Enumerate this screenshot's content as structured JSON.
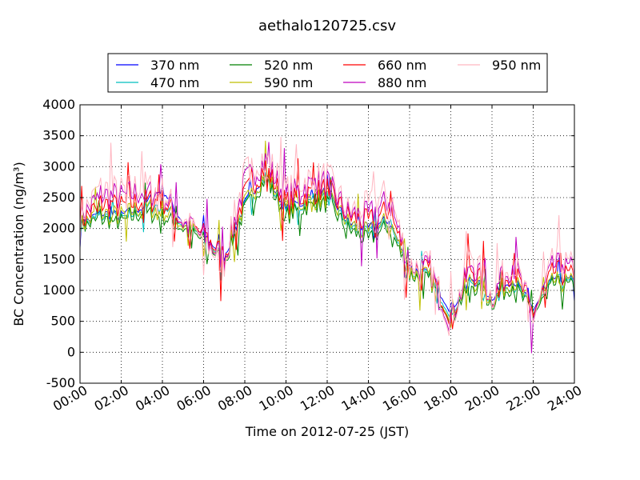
{
  "chart_data": {
    "type": "line",
    "title": "aethalo120725.csv",
    "xlabel": "Time on 2012-07-25 (JST)",
    "ylabel": "BC Concentration (ng/m³)",
    "xlim": [
      "00:00",
      "24:00"
    ],
    "ylim": [
      -500,
      4000
    ],
    "grid": true,
    "legend_position": "top-center",
    "x_ticks": [
      "00:00",
      "02:00",
      "04:00",
      "06:00",
      "08:00",
      "10:00",
      "12:00",
      "14:00",
      "16:00",
      "18:00",
      "20:00",
      "22:00",
      "24:00"
    ],
    "y_ticks": [
      -500,
      0,
      500,
      1000,
      1500,
      2000,
      2500,
      3000,
      3500,
      4000
    ],
    "x_hours": [
      0,
      1,
      2,
      3,
      4,
      5,
      6,
      7,
      8,
      9,
      10,
      11,
      12,
      13,
      14,
      15,
      16,
      17,
      18,
      19,
      20,
      21,
      22,
      23,
      24
    ],
    "series": [
      {
        "name": "370 nm",
        "color": "#0000ff",
        "values": [
          2050,
          2250,
          2200,
          2350,
          2650,
          2100,
          1900,
          1550,
          2400,
          2900,
          2300,
          2450,
          2600,
          2100,
          2000,
          2150,
          1350,
          1250,
          700,
          1200,
          900,
          1200,
          700,
          1200,
          1150
        ]
      },
      {
        "name": "470 nm",
        "color": "#00bfbf",
        "values": [
          2020,
          2200,
          2150,
          2300,
          2400,
          2050,
          1850,
          1500,
          2350,
          2850,
          2250,
          2400,
          2500,
          2050,
          1900,
          2100,
          1300,
          1200,
          650,
          1150,
          850,
          1150,
          650,
          1150,
          1100
        ]
      },
      {
        "name": "520 nm",
        "color": "#008000",
        "values": [
          2000,
          2150,
          2100,
          2250,
          2200,
          2000,
          1800,
          1450,
          2300,
          2800,
          2200,
          2350,
          2400,
          2000,
          1800,
          2050,
          1250,
          1150,
          600,
          1100,
          800,
          1100,
          600,
          1100,
          1050
        ]
      },
      {
        "name": "590 nm",
        "color": "#bfbf00",
        "values": [
          2050,
          2250,
          2200,
          2350,
          2300,
          2050,
          1850,
          1500,
          2400,
          2900,
          2300,
          2450,
          2500,
          2100,
          1900,
          2150,
          1300,
          1200,
          650,
          1200,
          850,
          1200,
          650,
          1150,
          1100
        ]
      },
      {
        "name": "660 nm",
        "color": "#ff0000",
        "values": [
          2100,
          2400,
          2350,
          2450,
          2450,
          2100,
          1900,
          1550,
          2550,
          3000,
          2400,
          2550,
          2650,
          2200,
          2100,
          2300,
          1400,
          1300,
          600,
          1350,
          900,
          1350,
          650,
          1300,
          1200
        ]
      },
      {
        "name": "880 nm",
        "color": "#bf00bf",
        "values": [
          2150,
          2550,
          2500,
          2600,
          2550,
          2100,
          1850,
          1500,
          2750,
          3100,
          2500,
          2700,
          2750,
          2250,
          2200,
          2450,
          1400,
          1350,
          500,
          1450,
          900,
          1450,
          600,
          1400,
          1300
        ]
      },
      {
        "name": "950 nm",
        "color": "#ffb6c1",
        "values": [
          2200,
          2650,
          2600,
          2700,
          2600,
          2150,
          1800,
          1450,
          2900,
          3200,
          2600,
          2800,
          2850,
          2300,
          2350,
          2600,
          1400,
          1400,
          450,
          1600,
          900,
          1550,
          550,
          1500,
          1350
        ]
      }
    ]
  }
}
